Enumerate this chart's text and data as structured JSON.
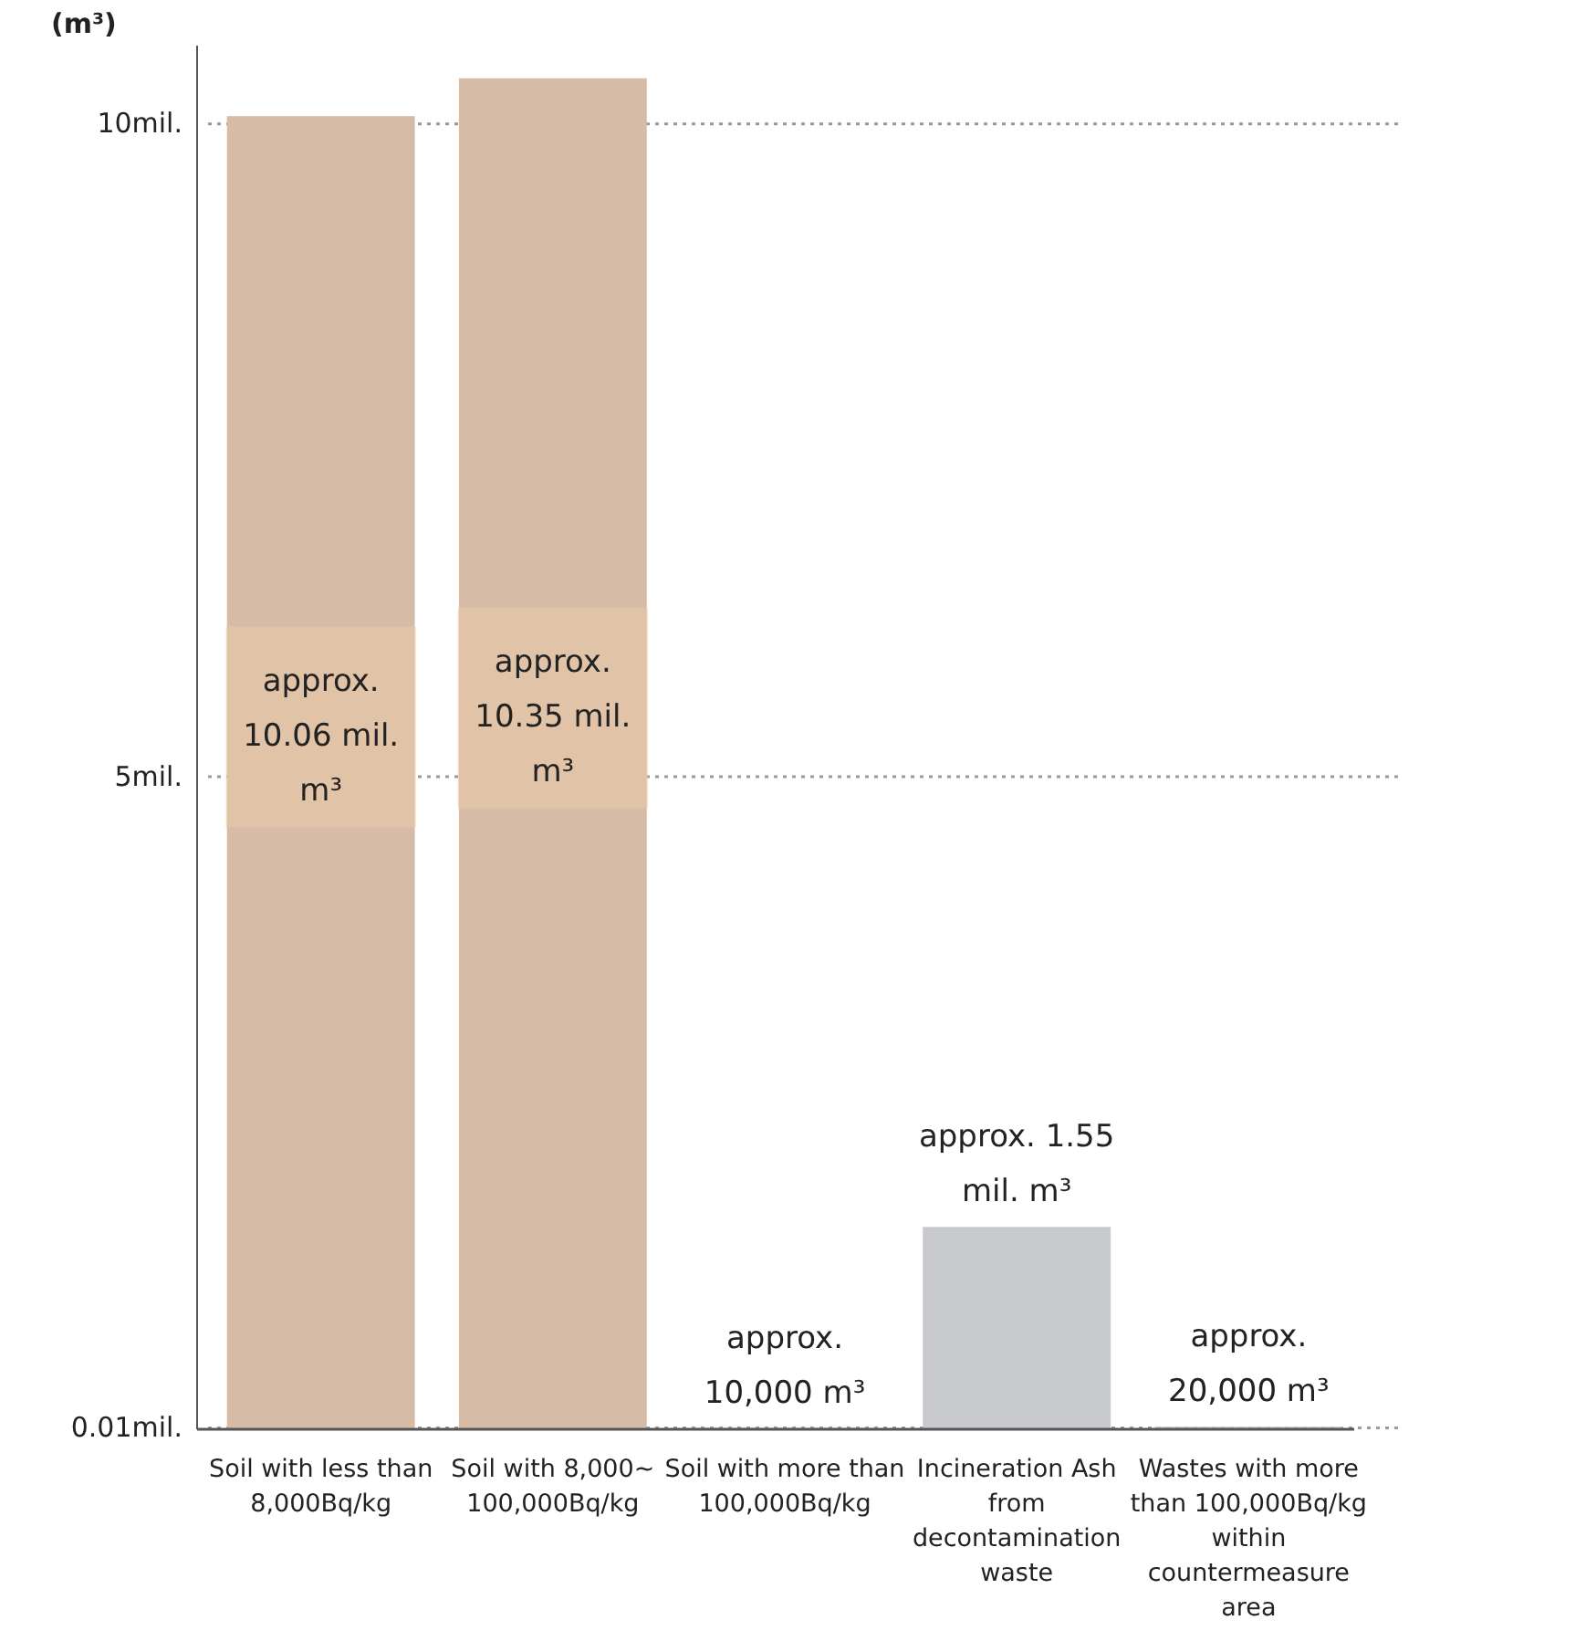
{
  "chart_data": {
    "type": "bar",
    "ylabel": "(m³)",
    "categories": [
      "Soil with less than 8,000Bq/kg",
      "Soil with 8,000~ 100,000Bq/kg",
      "Soil with more than 100,000Bq/kg",
      "Incineration Ash from decontamination waste",
      "Wastes with more than 100,000Bq/kg within countermeasure area"
    ],
    "values": [
      10.06,
      10.35,
      0.01,
      1.55,
      0.02
    ],
    "colors": [
      "#d6bba6",
      "#d6bba6",
      "#d6bba6",
      "#c8c9cc",
      "#c8c9cc"
    ],
    "value_labels": [
      "approx. 10.06 mil. m³",
      "approx. 10.35 mil. m³",
      "approx. 10,000 m³",
      "approx. 1.55 mil. m³",
      "approx. 20,000 m³"
    ],
    "ylim": [
      0,
      10.6
    ],
    "yticks": [
      {
        "value": 0.01,
        "label": "0.01mil."
      },
      {
        "value": 5,
        "label": "5mil."
      },
      {
        "value": 10,
        "label": "10mil."
      }
    ],
    "grid": "y",
    "line_style": "dotted"
  }
}
